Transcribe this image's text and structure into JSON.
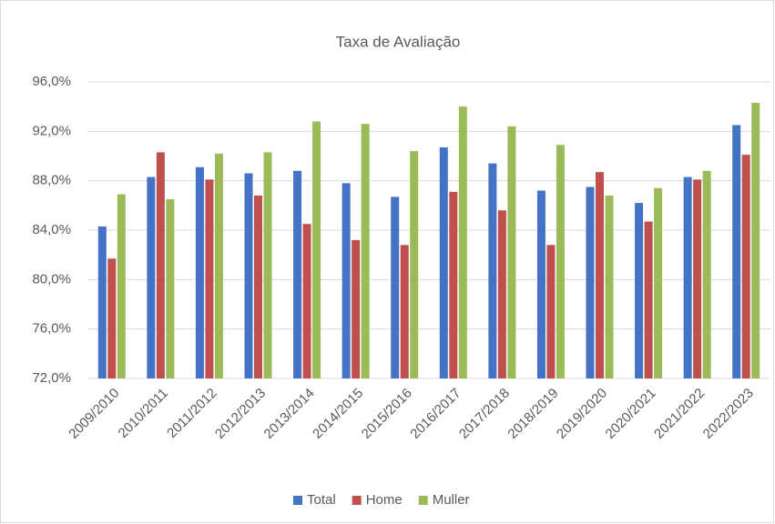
{
  "chart_data": {
    "type": "bar",
    "title": "Taxa de Avaliação",
    "categories": [
      "2009/2010",
      "2010/2011",
      "2011/2012",
      "2012/2013",
      "2013/2014",
      "2014/2015",
      "2015/2016",
      "2016/2017",
      "2017/2018",
      "2018/2019",
      "2019/2020",
      "2020/2021",
      "2021/2022",
      "2022/2023"
    ],
    "series": [
      {
        "name": "Total",
        "color": "#4472c4",
        "values": [
          84.3,
          88.3,
          89.1,
          88.6,
          88.8,
          87.8,
          86.7,
          90.7,
          89.4,
          87.2,
          87.5,
          86.2,
          88.3,
          92.5
        ]
      },
      {
        "name": "Home",
        "color": "#c0504d",
        "values": [
          81.7,
          90.3,
          88.1,
          86.8,
          84.5,
          83.2,
          82.8,
          87.1,
          85.6,
          82.8,
          88.7,
          84.7,
          88.1,
          90.1
        ]
      },
      {
        "name": "Muller",
        "color": "#9bbb59",
        "values": [
          86.9,
          86.5,
          90.2,
          90.3,
          92.8,
          92.6,
          90.4,
          94.0,
          92.4,
          90.9,
          86.8,
          87.4,
          88.8,
          94.3
        ]
      }
    ],
    "ylim": [
      72,
      96
    ],
    "yticks": [
      {
        "value": 72,
        "label": "72,0%"
      },
      {
        "value": 76,
        "label": "76,0%"
      },
      {
        "value": 80,
        "label": "80,0%"
      },
      {
        "value": 84,
        "label": "84,0%"
      },
      {
        "value": 88,
        "label": "88,0%"
      },
      {
        "value": 92,
        "label": "92,0%"
      },
      {
        "value": 96,
        "label": "96,0%"
      }
    ],
    "grid": true,
    "legend": "bottom"
  }
}
